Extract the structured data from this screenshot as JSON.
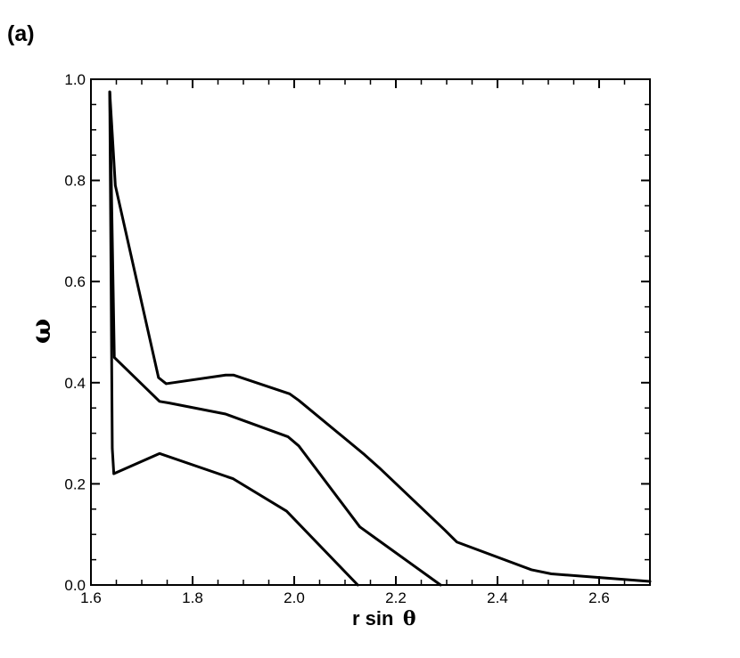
{
  "panel_label": "(a)",
  "chart_data": {
    "type": "line",
    "title": "",
    "xlabel_text": "r sin",
    "xlabel_symbol": "θ",
    "ylabel": "ω",
    "xlim": [
      1.6,
      2.7
    ],
    "ylim": [
      0.0,
      1.0
    ],
    "x_ticks": [
      1.6,
      1.8,
      2.0,
      2.2,
      2.4,
      2.6
    ],
    "x_tick_labels": [
      "1.6",
      "1.8",
      "2.0",
      "2.2",
      "2.4",
      "2.6"
    ],
    "y_ticks": [
      0.0,
      0.2,
      0.4,
      0.6,
      0.8,
      1.0
    ],
    "y_tick_labels": [
      "0.0",
      "0.2",
      "0.4",
      "0.6",
      "0.8",
      "1.0"
    ],
    "x_minor_step": 0.05,
    "y_minor_step": 0.05,
    "grid": false,
    "line_color": "#000000",
    "series": [
      {
        "points": [
          [
            1.637,
            0.975
          ],
          [
            1.648,
            0.79
          ],
          [
            1.733,
            0.41
          ],
          [
            1.748,
            0.398
          ],
          [
            1.865,
            0.415
          ],
          [
            1.881,
            0.415
          ],
          [
            1.991,
            0.378
          ],
          [
            2.009,
            0.365
          ],
          [
            2.138,
            0.258
          ],
          [
            2.167,
            0.232
          ],
          [
            2.297,
            0.108
          ],
          [
            2.32,
            0.085
          ],
          [
            2.467,
            0.03
          ],
          [
            2.506,
            0.022
          ],
          [
            2.7,
            0.007
          ]
        ]
      },
      {
        "points": [
          [
            1.637,
            0.975
          ],
          [
            1.646,
            0.45
          ],
          [
            1.735,
            0.363
          ],
          [
            1.753,
            0.36
          ],
          [
            1.865,
            0.338
          ],
          [
            1.988,
            0.293
          ],
          [
            2.009,
            0.275
          ],
          [
            2.129,
            0.115
          ],
          [
            2.158,
            0.094
          ],
          [
            2.288,
            0.0
          ]
        ]
      },
      {
        "points": [
          [
            1.637,
            0.975
          ],
          [
            1.642,
            0.27
          ],
          [
            1.645,
            0.22
          ],
          [
            1.735,
            0.26
          ],
          [
            1.88,
            0.21
          ],
          [
            1.985,
            0.146
          ],
          [
            2.125,
            0.0
          ]
        ]
      }
    ]
  }
}
